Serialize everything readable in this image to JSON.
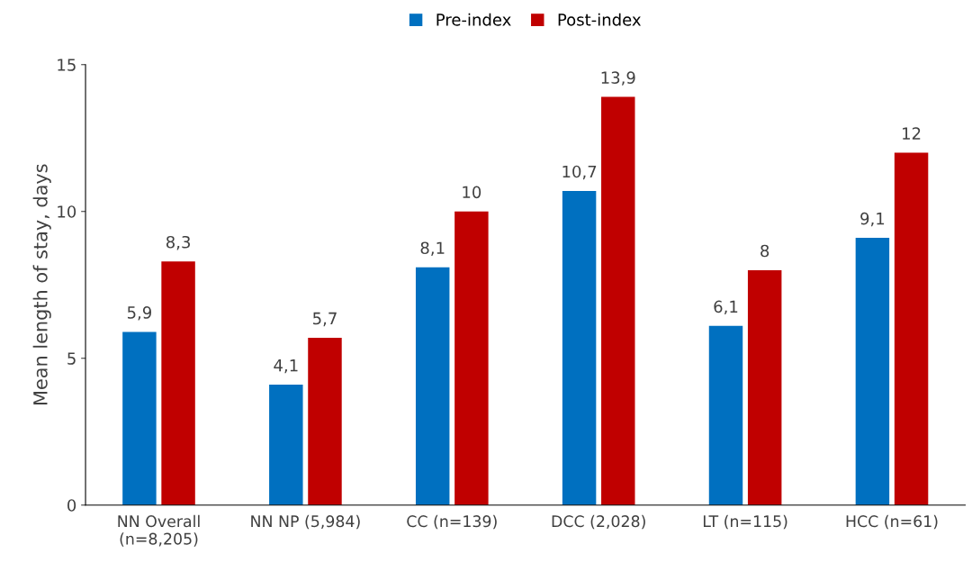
{
  "chart_data": {
    "type": "bar",
    "ylabel": "Mean length of stay, days",
    "categories": [
      "NN Overall\n(n=8,205)",
      "NN NP (5,984)",
      "CC (n=139)",
      "DCC (2,028)",
      "LT (n=115)",
      "HCC (n=61)"
    ],
    "series": [
      {
        "name": "Pre-index",
        "color": "#0070c0",
        "values": [
          5.9,
          4.1,
          8.1,
          10.7,
          6.1,
          9.1
        ],
        "value_labels": [
          "5,9",
          "4,1",
          "8,1",
          "10,7",
          "6,1",
          "9,1"
        ]
      },
      {
        "name": "Post-index",
        "color": "#c00000",
        "values": [
          8.3,
          5.7,
          10,
          13.9,
          8,
          12
        ],
        "value_labels": [
          "8,3",
          "5,7",
          "10",
          "13,9",
          "8",
          "12"
        ]
      }
    ],
    "ylim": [
      0,
      15
    ],
    "yticks": [
      0,
      5,
      10,
      15
    ],
    "grid": false,
    "legend": "top"
  }
}
